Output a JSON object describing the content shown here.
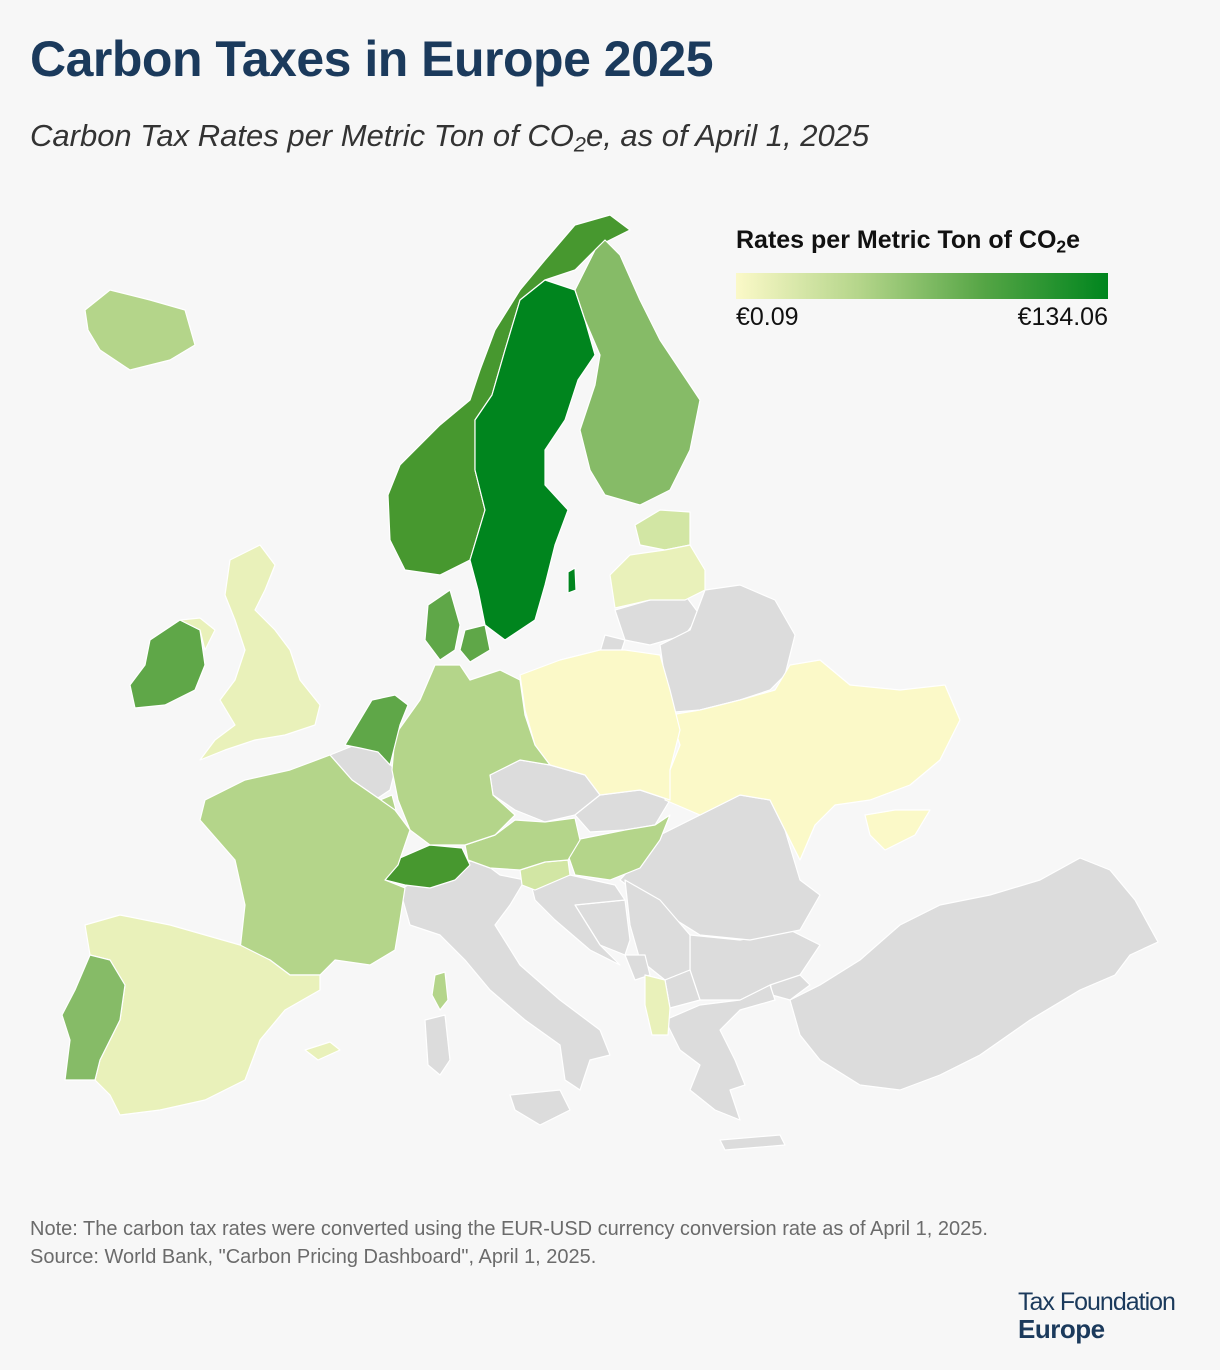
{
  "title": "Carbon Taxes in Europe 2025",
  "subtitle": {
    "prefix": "Carbon Tax Rates per Metric Ton of CO",
    "sub": "2",
    "suffix": "e, as of April 1, 2025"
  },
  "legend": {
    "title_prefix": "Rates per Metric Ton of CO",
    "title_sub": "2",
    "title_suffix": "e",
    "min_label": "€0.09",
    "max_label": "€134.06",
    "gradient_colors": [
      "#fbf9c8",
      "#b4d58a",
      "#55a545",
      "#00851e"
    ]
  },
  "colors": {
    "no_tax": "#dcdcdc",
    "background": "#f7f7f7",
    "title": "#1b3a5c"
  },
  "map_data": {
    "tiers": {
      "t1": "#fbf9c8",
      "t2": "#e9f1ba",
      "t3": "#d2e6a4",
      "t4": "#b4d58a",
      "t5": "#86bb67",
      "t6": "#5fa748",
      "t7": "#47982f",
      "t8": "#00851e"
    },
    "countries": [
      {
        "id": "sweden",
        "tier": "t8"
      },
      {
        "id": "switzerland",
        "tier": "t7"
      },
      {
        "id": "norway",
        "tier": "t7"
      },
      {
        "id": "liechtenstein",
        "tier": "t7"
      },
      {
        "id": "netherlands",
        "tier": "t6"
      },
      {
        "id": "denmark",
        "tier": "t6"
      },
      {
        "id": "ireland",
        "tier": "t6"
      },
      {
        "id": "finland",
        "tier": "t5"
      },
      {
        "id": "portugal",
        "tier": "t5"
      },
      {
        "id": "france",
        "tier": "t4"
      },
      {
        "id": "germany",
        "tier": "t4"
      },
      {
        "id": "austria",
        "tier": "t4"
      },
      {
        "id": "iceland",
        "tier": "t4"
      },
      {
        "id": "luxembourg",
        "tier": "t4"
      },
      {
        "id": "hungary",
        "tier": "t4"
      },
      {
        "id": "united-kingdom",
        "tier": "t2"
      },
      {
        "id": "spain",
        "tier": "t2"
      },
      {
        "id": "latvia",
        "tier": "t2"
      },
      {
        "id": "estonia",
        "tier": "t3"
      },
      {
        "id": "slovenia",
        "tier": "t3"
      },
      {
        "id": "albania",
        "tier": "t2"
      },
      {
        "id": "poland",
        "tier": "t1"
      },
      {
        "id": "ukraine",
        "tier": "t1"
      },
      {
        "id": "belgium",
        "tier": "none"
      },
      {
        "id": "italy",
        "tier": "none"
      },
      {
        "id": "czechia",
        "tier": "none"
      },
      {
        "id": "slovakia",
        "tier": "none"
      },
      {
        "id": "lithuania",
        "tier": "none"
      },
      {
        "id": "belarus",
        "tier": "none"
      },
      {
        "id": "romania",
        "tier": "none"
      },
      {
        "id": "moldova",
        "tier": "none"
      },
      {
        "id": "croatia",
        "tier": "none"
      },
      {
        "id": "bosnia",
        "tier": "none"
      },
      {
        "id": "serbia",
        "tier": "none"
      },
      {
        "id": "montenegro",
        "tier": "none"
      },
      {
        "id": "north-macedonia",
        "tier": "none"
      },
      {
        "id": "bulgaria",
        "tier": "none"
      },
      {
        "id": "greece",
        "tier": "none"
      },
      {
        "id": "turkey",
        "tier": "none"
      }
    ]
  },
  "notes": {
    "note": "Note: The carbon tax rates were converted using the EUR-USD currency conversion rate as of April 1, 2025.",
    "source": "Source: World Bank, \"Carbon Pricing Dashboard\", April 1, 2025."
  },
  "brand": {
    "line1": "Tax Foundation",
    "line2": "Europe"
  }
}
